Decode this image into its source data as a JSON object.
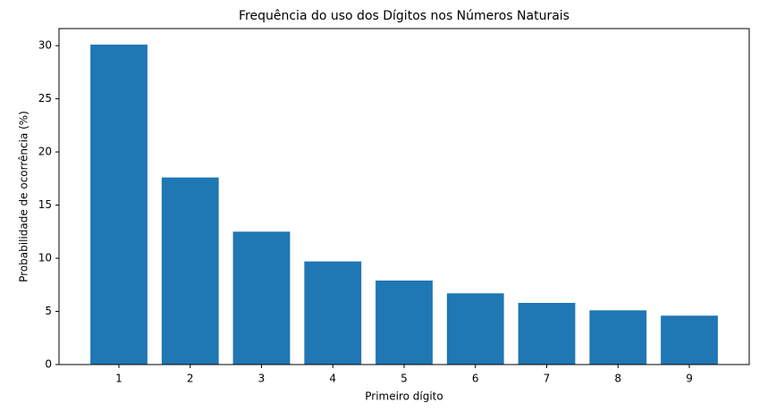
{
  "chart_data": {
    "type": "bar",
    "title": "Frequência do uso dos Dígitos nos Números Naturais",
    "xlabel": "Primeiro dígito",
    "ylabel": "Probabilidade de ocorrência (%)",
    "x": [
      1,
      2,
      3,
      4,
      5,
      6,
      7,
      8,
      9
    ],
    "values": [
      30.1,
      17.6,
      12.5,
      9.7,
      7.9,
      6.7,
      5.8,
      5.1,
      4.6
    ],
    "color": "#1f77b4",
    "xlim": [
      0.16,
      9.84
    ],
    "xticks": [
      1,
      2,
      3,
      4,
      5,
      6,
      7,
      8,
      9
    ],
    "ylim": [
      0,
      31.605
    ],
    "yticks": [
      0,
      5,
      10,
      15,
      20,
      25,
      30
    ],
    "grid": false
  }
}
